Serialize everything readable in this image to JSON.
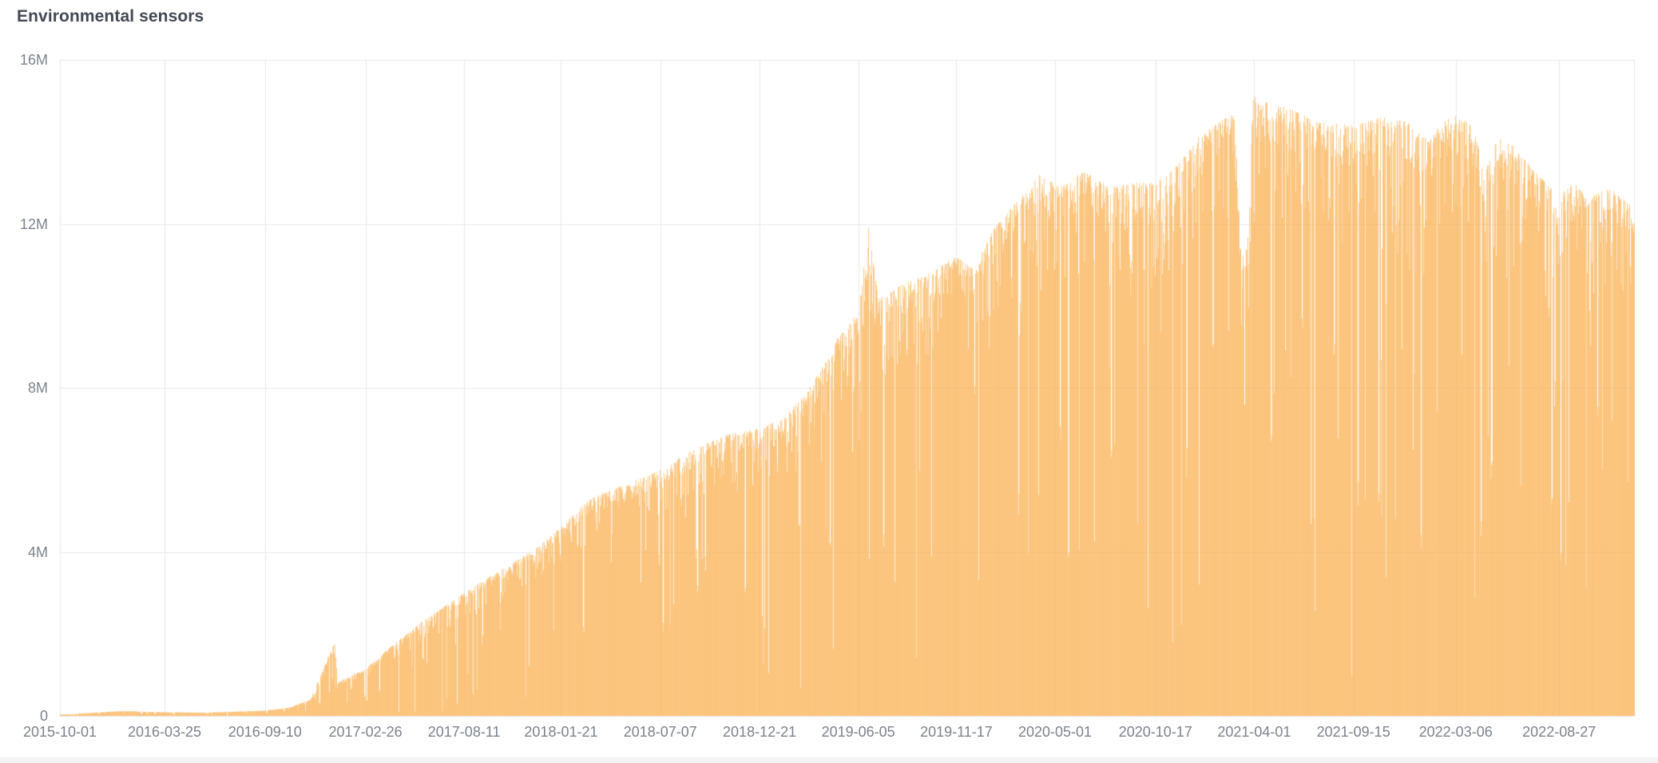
{
  "panel": {
    "title": "Environmental sensors"
  },
  "colors": {
    "title": "#424854",
    "axis_label": "#7C828B",
    "bar": "#FAB255",
    "grid": "#E8E9ED",
    "background": "#FFFFFF"
  },
  "chart_data": {
    "type": "bar",
    "title": "Environmental sensors",
    "xlabel": "",
    "ylabel": "",
    "frequency": "daily",
    "x_range": [
      "2015-10-01",
      "2022-12-31"
    ],
    "ylim": [
      0,
      16000000
    ],
    "grid": true,
    "legend": "none",
    "y_ticks": [
      {
        "value": 0,
        "label": "0"
      },
      {
        "value": 4000000,
        "label": "4M"
      },
      {
        "value": 8000000,
        "label": "8M"
      },
      {
        "value": 12000000,
        "label": "12M"
      },
      {
        "value": 16000000,
        "label": "16M"
      }
    ],
    "x_ticks": [
      "2015-10-01",
      "2016-03-25",
      "2016-09-10",
      "2017-02-26",
      "2017-08-11",
      "2018-01-21",
      "2018-07-07",
      "2018-12-21",
      "2019-06-05",
      "2019-11-17",
      "2020-05-01",
      "2020-10-17",
      "2021-04-01",
      "2021-09-15",
      "2022-03-06",
      "2022-08-27"
    ],
    "bar_color": "#FAB255",
    "grid_color": "#E8E9ED",
    "series_name": "Environmental sensors",
    "envelope_keypoints": [
      [
        "2015-10-01",
        30000
      ],
      [
        "2016-01-15",
        120000
      ],
      [
        "2016-03-25",
        90000
      ],
      [
        "2016-06-01",
        80000
      ],
      [
        "2016-09-10",
        130000
      ],
      [
        "2016-10-20",
        200000
      ],
      [
        "2016-11-25",
        400000
      ],
      [
        "2017-01-06",
        1850000
      ],
      [
        "2017-01-09",
        820000
      ],
      [
        "2017-02-26",
        1150000
      ],
      [
        "2017-04-10",
        1700000
      ],
      [
        "2017-06-01",
        2300000
      ],
      [
        "2017-08-11",
        3000000
      ],
      [
        "2017-10-15",
        3600000
      ],
      [
        "2017-12-10",
        4100000
      ],
      [
        "2018-01-21",
        4600000
      ],
      [
        "2018-03-10",
        5300000
      ],
      [
        "2018-05-01",
        5600000
      ],
      [
        "2018-07-07",
        6000000
      ],
      [
        "2018-09-01",
        6500000
      ],
      [
        "2018-11-01",
        6900000
      ],
      [
        "2018-12-21",
        7000000
      ],
      [
        "2019-02-01",
        7300000
      ],
      [
        "2019-03-20",
        8100000
      ],
      [
        "2019-05-01",
        9200000
      ],
      [
        "2019-06-05",
        9900000
      ],
      [
        "2019-06-22",
        11900000
      ],
      [
        "2019-07-08",
        10200000
      ],
      [
        "2019-08-15",
        10500000
      ],
      [
        "2019-10-01",
        10800000
      ],
      [
        "2019-11-17",
        11200000
      ],
      [
        "2019-12-15",
        10900000
      ],
      [
        "2020-01-20",
        11900000
      ],
      [
        "2020-03-01",
        12600000
      ],
      [
        "2020-04-05",
        13200000
      ],
      [
        "2020-05-10",
        12900000
      ],
      [
        "2020-06-15",
        13300000
      ],
      [
        "2020-08-01",
        12900000
      ],
      [
        "2020-09-15",
        13000000
      ],
      [
        "2020-10-17",
        13000000
      ],
      [
        "2020-11-20",
        13400000
      ],
      [
        "2020-12-25",
        14100000
      ],
      [
        "2021-02-01",
        14500000
      ],
      [
        "2021-02-28",
        14700000
      ],
      [
        "2021-03-08",
        11500000
      ],
      [
        "2021-03-20",
        11400000
      ],
      [
        "2021-03-30",
        15200000
      ],
      [
        "2021-04-15",
        15000000
      ],
      [
        "2021-06-01",
        14800000
      ],
      [
        "2021-07-15",
        14500000
      ],
      [
        "2021-09-15",
        14400000
      ],
      [
        "2021-11-01",
        14600000
      ],
      [
        "2021-12-15",
        14500000
      ],
      [
        "2022-01-20",
        14000000
      ],
      [
        "2022-02-15",
        14600000
      ],
      [
        "2022-03-06",
        14650000
      ],
      [
        "2022-04-05",
        14400000
      ],
      [
        "2022-04-22",
        13200000
      ],
      [
        "2022-05-15",
        14100000
      ],
      [
        "2022-06-10",
        13900000
      ],
      [
        "2022-07-15",
        13300000
      ],
      [
        "2022-08-27",
        12700000
      ],
      [
        "2022-09-20",
        13000000
      ],
      [
        "2022-10-15",
        12600000
      ],
      [
        "2022-11-15",
        12900000
      ],
      [
        "2022-12-31",
        12400000
      ]
    ],
    "noise": {
      "seed": 1337,
      "jitter": 0.07,
      "texture_probability": 0.15,
      "texture_min": 0.82,
      "texture_max": 0.96,
      "dip_probability": 0.05,
      "dip_min": 0.3,
      "dip_max": 0.8,
      "dip_carry_probability": 0.35,
      "outage_probability": 0.009,
      "outage_min": 0.04,
      "outage_max": 0.25
    }
  }
}
